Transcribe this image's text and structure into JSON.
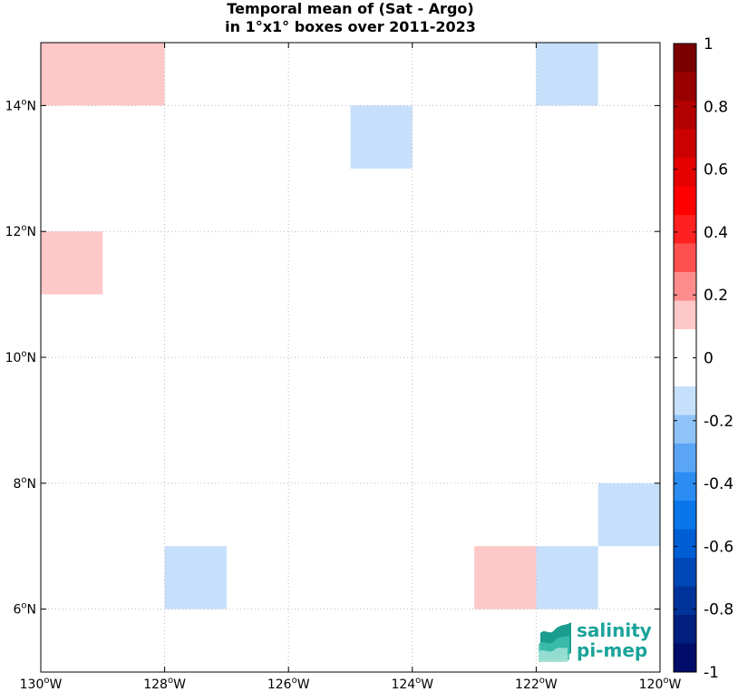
{
  "title_line1": "Temporal mean of (Sat - Argo)",
  "title_line2": "in 1°x1° boxes over 2011-2023",
  "logo": {
    "line1": "salinity",
    "line2": "pi-mep",
    "color": "#1aa39a"
  },
  "chart_data": {
    "type": "heatmap",
    "x_range": [
      -130,
      -120
    ],
    "y_range": [
      5,
      15
    ],
    "x_ticks": [
      {
        "value": -130,
        "label": "130",
        "suffix": "W"
      },
      {
        "value": -128,
        "label": "128",
        "suffix": "W"
      },
      {
        "value": -126,
        "label": "126",
        "suffix": "W"
      },
      {
        "value": -124,
        "label": "124",
        "suffix": "W"
      },
      {
        "value": -122,
        "label": "122",
        "suffix": "W"
      },
      {
        "value": -120,
        "label": "120",
        "suffix": "W"
      }
    ],
    "y_ticks": [
      {
        "value": 6,
        "label": "6",
        "suffix": "N"
      },
      {
        "value": 8,
        "label": "8",
        "suffix": "N"
      },
      {
        "value": 10,
        "label": "10",
        "suffix": "N"
      },
      {
        "value": 12,
        "label": "12",
        "suffix": "N"
      },
      {
        "value": 14,
        "label": "14",
        "suffix": "N"
      }
    ],
    "grid": true,
    "cells": [
      {
        "lon0": -130,
        "lon1": -128,
        "lat0": 14,
        "lat1": 15,
        "value": 0.15
      },
      {
        "lon0": -130,
        "lon1": -129,
        "lat0": 11,
        "lat1": 12,
        "value": 0.15
      },
      {
        "lon0": -125,
        "lon1": -124,
        "lat0": 13,
        "lat1": 14,
        "value": -0.15
      },
      {
        "lon0": -122,
        "lon1": -121,
        "lat0": 14,
        "lat1": 15,
        "value": -0.15
      },
      {
        "lon0": -121,
        "lon1": -120,
        "lat0": 7,
        "lat1": 8,
        "value": -0.15
      },
      {
        "lon0": -128,
        "lon1": -127,
        "lat0": 6,
        "lat1": 7,
        "value": -0.15
      },
      {
        "lon0": -123,
        "lon1": -122,
        "lat0": 6,
        "lat1": 7,
        "value": 0.15
      },
      {
        "lon0": -122,
        "lon1": -121,
        "lat0": 6,
        "lat1": 7,
        "value": -0.15
      }
    ],
    "colorbar": {
      "range": [
        -1,
        1
      ],
      "ticks": [
        {
          "value": 1,
          "label": "1"
        },
        {
          "value": 0.8,
          "label": "0.8"
        },
        {
          "value": 0.6,
          "label": "0.6"
        },
        {
          "value": 0.4,
          "label": "0.4"
        },
        {
          "value": 0.2,
          "label": "0.2"
        },
        {
          "value": 0,
          "label": "0"
        },
        {
          "value": -0.2,
          "label": "-0.2"
        },
        {
          "value": -0.4,
          "label": "-0.4"
        },
        {
          "value": -0.6,
          "label": "-0.6"
        },
        {
          "value": -0.8,
          "label": "-0.8"
        },
        {
          "value": -1,
          "label": "-1"
        }
      ],
      "colors_top_to_bottom": [
        "#7a0000",
        "#990000",
        "#b30000",
        "#cc0000",
        "#e60000",
        "#ff0000",
        "#ff2020",
        "#ff5050",
        "#ff8c8c",
        "#ffc8c8",
        "#ffffff",
        "#ffffff",
        "#c6e0fc",
        "#8fc3f7",
        "#5aa6f5",
        "#2b8df2",
        "#0a76ea",
        "#005ed4",
        "#0048b8",
        "#00339a",
        "#001f7e",
        "#000c6a"
      ]
    }
  }
}
